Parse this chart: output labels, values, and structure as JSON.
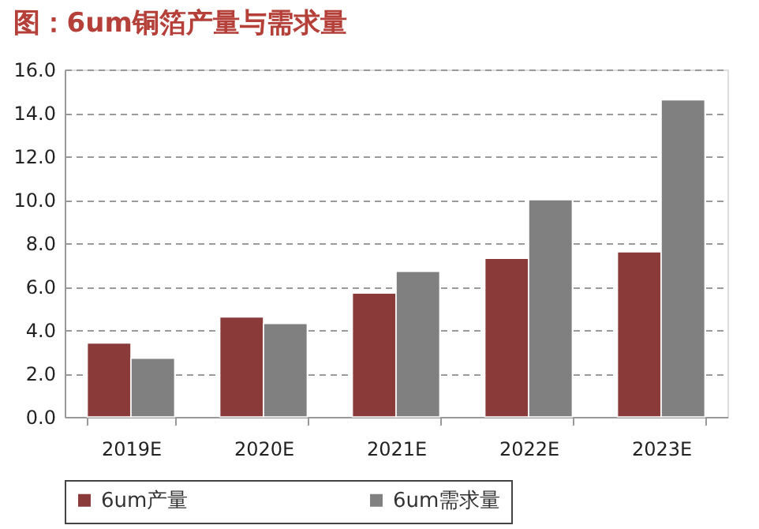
{
  "chart_data": {
    "type": "bar",
    "title": "图：6um铜箔产量与需求量",
    "categories": [
      "2019E",
      "2020E",
      "2021E",
      "2022E",
      "2023E"
    ],
    "series": [
      {
        "name": "6um产量",
        "color": "#8b3a3a",
        "values": [
          3.4,
          4.6,
          5.7,
          7.3,
          7.6
        ]
      },
      {
        "name": "6um需求量",
        "color": "#808080",
        "values": [
          2.7,
          4.3,
          6.7,
          10.0,
          14.6
        ]
      }
    ],
    "ylim": [
      0,
      16
    ],
    "yticks": [
      {
        "value": 0,
        "label": "0.0"
      },
      {
        "value": 2,
        "label": "2.0"
      },
      {
        "value": 4,
        "label": "4.0"
      },
      {
        "value": 6,
        "label": "6.0"
      },
      {
        "value": 8,
        "label": "8.0"
      },
      {
        "value": 10,
        "label": "10.0"
      },
      {
        "value": 12,
        "label": "12.0"
      },
      {
        "value": 14,
        "label": "14.0"
      },
      {
        "value": 16,
        "label": "16.0"
      }
    ],
    "grid": "y",
    "legend": "bottom"
  }
}
